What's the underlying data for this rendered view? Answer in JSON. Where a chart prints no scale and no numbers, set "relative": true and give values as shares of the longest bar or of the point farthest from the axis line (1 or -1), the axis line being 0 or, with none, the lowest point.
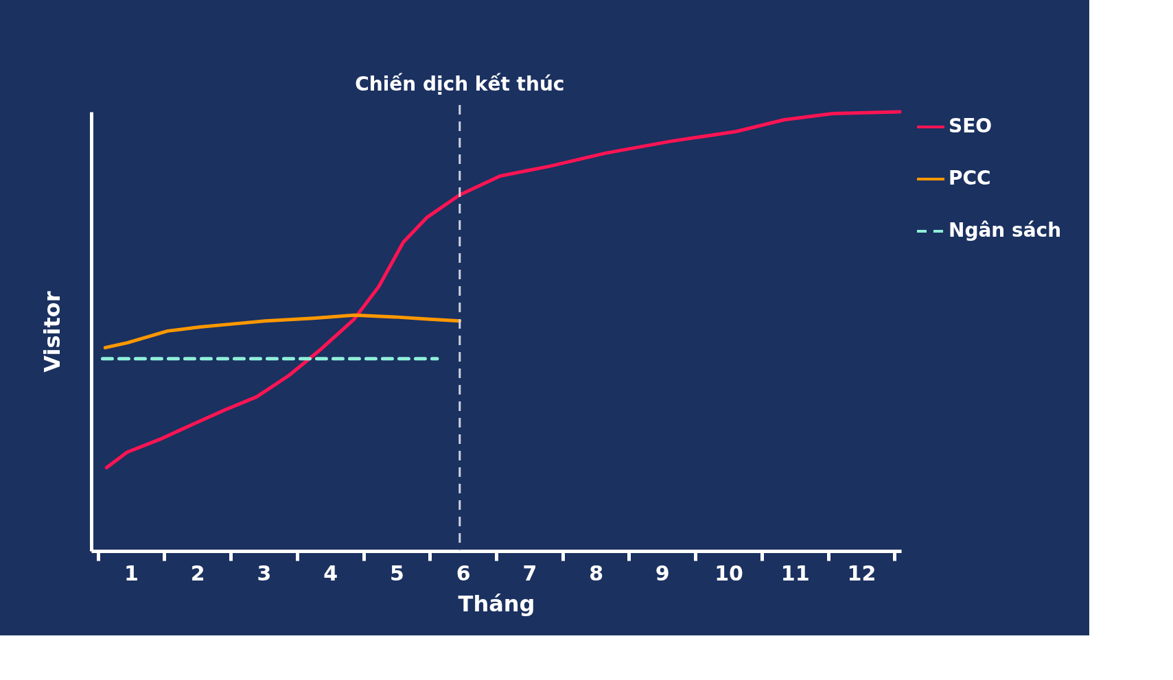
{
  "chart_data": {
    "type": "line",
    "relative": true,
    "xlabel": "Tháng",
    "ylabel": "Visitor",
    "legend": "right",
    "grid": false,
    "marker": "none",
    "tick_labels": "x",
    "xlim": [
      0.4,
      12.6
    ],
    "xticks": [
      {
        "value": 0.5,
        "label": null
      },
      1,
      {
        "value": 1.5,
        "label": null
      },
      2,
      {
        "value": 2.5,
        "label": null
      },
      3,
      {
        "value": 3.5,
        "label": null
      },
      4,
      {
        "value": 4.5,
        "label": null
      },
      5,
      {
        "value": 5.5,
        "label": null
      },
      6,
      {
        "value": 6.5,
        "label": null
      },
      7,
      {
        "value": 7.5,
        "label": null
      },
      8,
      {
        "value": 8.5,
        "label": null
      },
      9,
      {
        "value": 9.5,
        "label": null
      },
      10,
      {
        "value": 10.5,
        "label": null
      },
      11,
      {
        "value": 11.5,
        "label": null
      },
      12,
      {
        "value": 12.5,
        "label": null
      }
    ],
    "series": [
      {
        "name": "SEO",
        "type": "line",
        "color": "#ff1453",
        "line_style": "solid",
        "x": [
          0.63,
          0.94,
          1.43,
          1.92,
          2.41,
          2.89,
          3.38,
          3.87,
          4.36,
          4.73,
          5.1,
          5.46,
          5.95,
          6.56,
          7.3,
          8.15,
          9.13,
          10.11,
          10.84,
          11.57,
          12.58
        ],
        "values": [
          0.19,
          0.225,
          0.254,
          0.288,
          0.321,
          0.351,
          0.4,
          0.461,
          0.528,
          0.602,
          0.703,
          0.76,
          0.811,
          0.854,
          0.876,
          0.906,
          0.933,
          0.955,
          0.982,
          0.996,
          1.0
        ]
      },
      {
        "name": "PCC",
        "type": "line",
        "color": "#ff9800",
        "line_style": "solid",
        "x": [
          0.61,
          0.94,
          1.55,
          2.04,
          2.53,
          3.02,
          3.75,
          4.36,
          4.97,
          5.46,
          5.95
        ],
        "values": [
          0.463,
          0.474,
          0.501,
          0.51,
          0.517,
          0.524,
          0.53,
          0.537,
          0.533,
          0.528,
          0.524
        ]
      },
      {
        "name": "Ngân sách",
        "type": "line",
        "color": "#8ff0d8",
        "line_style": "dashed",
        "x": [
          0.57,
          5.61
        ],
        "values": [
          0.438,
          0.438
        ]
      }
    ],
    "ref_lines": [
      {
        "axis": "x",
        "value": 5.95,
        "label": "Chiến dịch kết thúc",
        "color": "#d0d4de",
        "line_style": "dashed"
      }
    ]
  }
}
